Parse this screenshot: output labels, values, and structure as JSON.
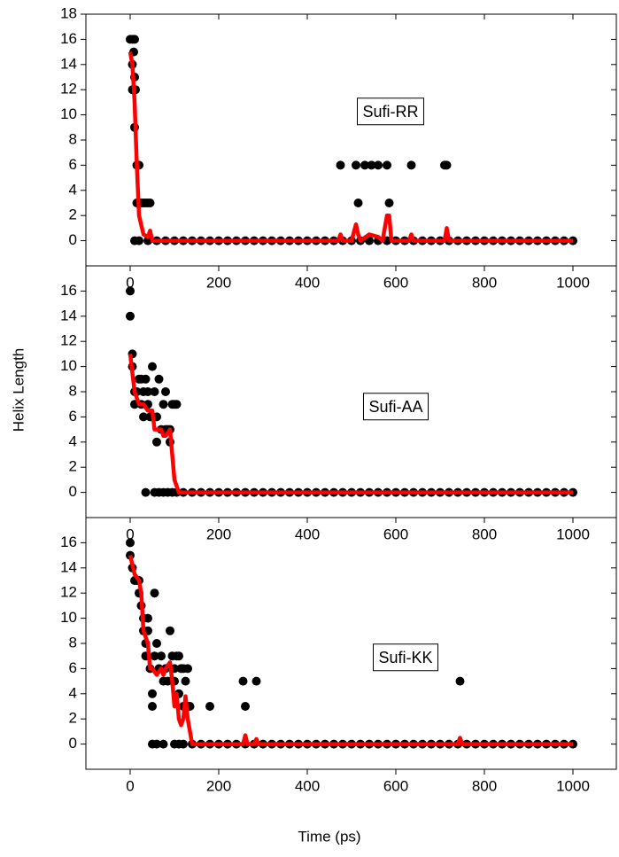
{
  "y_label": "Helix Length",
  "x_label": "Time (ps)",
  "chart_data": [
    {
      "type": "scatter",
      "annotation": "Sufi-RR",
      "xlim": [
        -100,
        1100
      ],
      "ylim": [
        -2,
        18
      ],
      "xticks": [
        0,
        200,
        400,
        600,
        800,
        1000
      ],
      "yticks": [
        0,
        2,
        4,
        6,
        8,
        10,
        12,
        14,
        16,
        18
      ],
      "points": {
        "color": "#000000",
        "x": [
          0,
          5,
          10,
          5,
          8,
          10,
          5,
          12,
          10,
          15,
          20,
          15,
          20,
          25,
          30,
          35,
          40,
          45,
          10,
          475,
          510,
          515,
          530,
          545,
          560,
          580,
          585,
          635,
          710,
          715,
          20,
          40,
          60,
          80,
          100,
          120,
          140,
          160,
          180,
          200,
          220,
          240,
          260,
          280,
          300,
          320,
          340,
          360,
          380,
          400,
          420,
          440,
          460,
          480,
          500,
          520,
          540,
          560,
          580,
          600,
          620,
          640,
          660,
          680,
          700,
          720,
          740,
          760,
          780,
          800,
          820,
          840,
          860,
          880,
          900,
          920,
          940,
          960,
          980,
          1000
        ],
        "y": [
          16,
          16,
          16,
          14,
          15,
          13,
          12,
          12,
          9,
          6,
          6,
          3,
          3,
          3,
          3,
          3,
          3,
          3,
          0,
          6,
          6,
          3,
          6,
          6,
          6,
          6,
          3,
          6,
          6,
          6,
          0,
          0,
          0,
          0,
          0,
          0,
          0,
          0,
          0,
          0,
          0,
          0,
          0,
          0,
          0,
          0,
          0,
          0,
          0,
          0,
          0,
          0,
          0,
          0,
          0,
          0,
          0,
          0,
          0,
          0,
          0,
          0,
          0,
          0,
          0,
          0,
          0,
          0,
          0,
          0,
          0,
          0,
          0,
          0,
          0,
          0,
          0,
          0,
          0,
          0
        ]
      },
      "line": {
        "color": "#ff0000",
        "x": [
          0,
          5,
          10,
          15,
          20,
          30,
          40,
          45,
          50,
          60,
          100,
          470,
          475,
          480,
          500,
          510,
          515,
          520,
          540,
          560,
          570,
          580,
          585,
          590,
          600,
          630,
          635,
          640,
          700,
          710,
          715,
          720,
          1000
        ],
        "y": [
          15,
          14,
          11,
          6,
          2,
          0.5,
          0.3,
          0.8,
          0,
          0,
          0,
          0,
          0.5,
          0,
          0,
          1.3,
          0.5,
          0,
          0.5,
          0.3,
          0,
          2,
          2,
          0,
          0,
          0,
          0.5,
          0,
          0,
          0,
          1,
          0,
          0
        ]
      }
    },
    {
      "type": "scatter",
      "annotation": "Sufi-AA",
      "xlim": [
        -100,
        1100
      ],
      "ylim": [
        -2,
        18
      ],
      "xticks": [
        0,
        200,
        400,
        600,
        800,
        1000
      ],
      "yticks": [
        0,
        2,
        4,
        6,
        8,
        10,
        12,
        14,
        16
      ],
      "points": {
        "color": "#000000",
        "x": [
          0,
          0,
          5,
          5,
          10,
          10,
          15,
          20,
          25,
          25,
          30,
          30,
          35,
          40,
          40,
          45,
          50,
          55,
          60,
          60,
          65,
          70,
          75,
          80,
          80,
          85,
          90,
          90,
          95,
          100,
          105,
          35,
          55,
          65,
          75,
          85,
          95,
          105,
          120,
          140,
          160,
          180,
          200,
          220,
          240,
          260,
          280,
          300,
          320,
          340,
          360,
          380,
          400,
          420,
          440,
          460,
          480,
          500,
          520,
          540,
          560,
          580,
          600,
          620,
          640,
          660,
          680,
          700,
          720,
          740,
          760,
          780,
          800,
          820,
          840,
          860,
          880,
          900,
          920,
          940,
          960,
          980,
          1000
        ],
        "y": [
          16,
          14,
          11,
          10,
          8,
          7,
          8,
          9,
          9,
          7,
          8,
          6,
          9,
          8,
          7,
          6,
          10,
          8,
          6,
          4,
          9,
          5,
          7,
          5,
          8,
          5,
          5,
          4,
          7,
          7,
          7,
          0,
          0,
          0,
          0,
          0,
          0,
          0,
          0,
          0,
          0,
          0,
          0,
          0,
          0,
          0,
          0,
          0,
          0,
          0,
          0,
          0,
          0,
          0,
          0,
          0,
          0,
          0,
          0,
          0,
          0,
          0,
          0,
          0,
          0,
          0,
          0,
          0,
          0,
          0,
          0,
          0,
          0,
          0,
          0,
          0,
          0,
          0,
          0,
          0,
          0,
          0,
          0
        ]
      },
      "line": {
        "color": "#ff0000",
        "x": [
          0,
          10,
          20,
          30,
          40,
          50,
          55,
          60,
          70,
          75,
          80,
          90,
          100,
          110,
          1000
        ],
        "y": [
          11,
          8,
          7,
          7,
          6.5,
          6.5,
          5,
          5,
          5,
          4.5,
          4.5,
          5,
          1,
          0,
          0
        ]
      }
    },
    {
      "type": "scatter",
      "annotation": "Sufi-KK",
      "xlim": [
        -100,
        1100
      ],
      "ylim": [
        -2,
        18
      ],
      "xticks": [
        0,
        200,
        400,
        600,
        800,
        1000
      ],
      "yticks": [
        0,
        2,
        4,
        6,
        8,
        10,
        12,
        14,
        16
      ],
      "points": {
        "color": "#000000",
        "x": [
          0,
          0,
          5,
          10,
          15,
          20,
          20,
          25,
          30,
          30,
          35,
          35,
          40,
          40,
          45,
          50,
          50,
          55,
          55,
          60,
          65,
          70,
          75,
          80,
          85,
          90,
          95,
          100,
          100,
          105,
          110,
          110,
          115,
          120,
          120,
          125,
          130,
          130,
          135,
          180,
          255,
          260,
          285,
          745,
          50,
          60,
          75,
          100,
          110,
          120,
          140,
          160,
          180,
          200,
          220,
          240,
          260,
          280,
          300,
          320,
          340,
          360,
          380,
          400,
          420,
          440,
          460,
          480,
          500,
          520,
          540,
          560,
          580,
          600,
          620,
          640,
          660,
          680,
          700,
          720,
          740,
          760,
          780,
          800,
          820,
          840,
          860,
          880,
          900,
          920,
          940,
          960,
          980,
          1000
        ],
        "y": [
          16,
          15,
          14,
          13,
          13,
          13,
          12,
          11,
          10,
          9,
          8,
          7,
          10,
          9,
          6,
          4,
          3,
          12,
          7,
          8,
          6,
          7,
          5,
          6,
          5,
          9,
          7,
          6,
          5,
          7,
          7,
          4,
          6,
          6,
          3,
          5,
          6,
          3,
          3,
          3,
          5,
          3,
          5,
          5,
          0,
          0,
          0,
          0,
          0,
          0,
          0,
          0,
          0,
          0,
          0,
          0,
          0,
          0,
          0,
          0,
          0,
          0,
          0,
          0,
          0,
          0,
          0,
          0,
          0,
          0,
          0,
          0,
          0,
          0,
          0,
          0,
          0,
          0,
          0,
          0,
          0,
          0,
          0,
          0,
          0,
          0,
          0,
          0,
          0,
          0,
          0,
          0,
          0,
          0
        ]
      },
      "line": {
        "color": "#ff0000",
        "x": [
          0,
          10,
          20,
          25,
          30,
          40,
          45,
          50,
          60,
          70,
          75,
          80,
          90,
          95,
          100,
          105,
          110,
          115,
          120,
          125,
          130,
          135,
          140,
          150,
          255,
          260,
          265,
          280,
          285,
          290,
          740,
          745,
          750,
          1000
        ],
        "y": [
          15,
          13.5,
          13,
          12,
          9,
          8,
          6,
          6,
          5.5,
          6,
          5.5,
          6,
          6.5,
          5,
          3,
          4,
          2,
          1.5,
          2,
          3.8,
          2,
          1,
          0,
          0,
          0,
          0.7,
          0,
          0,
          0.4,
          0,
          0,
          0.5,
          0,
          0
        ]
      }
    }
  ]
}
